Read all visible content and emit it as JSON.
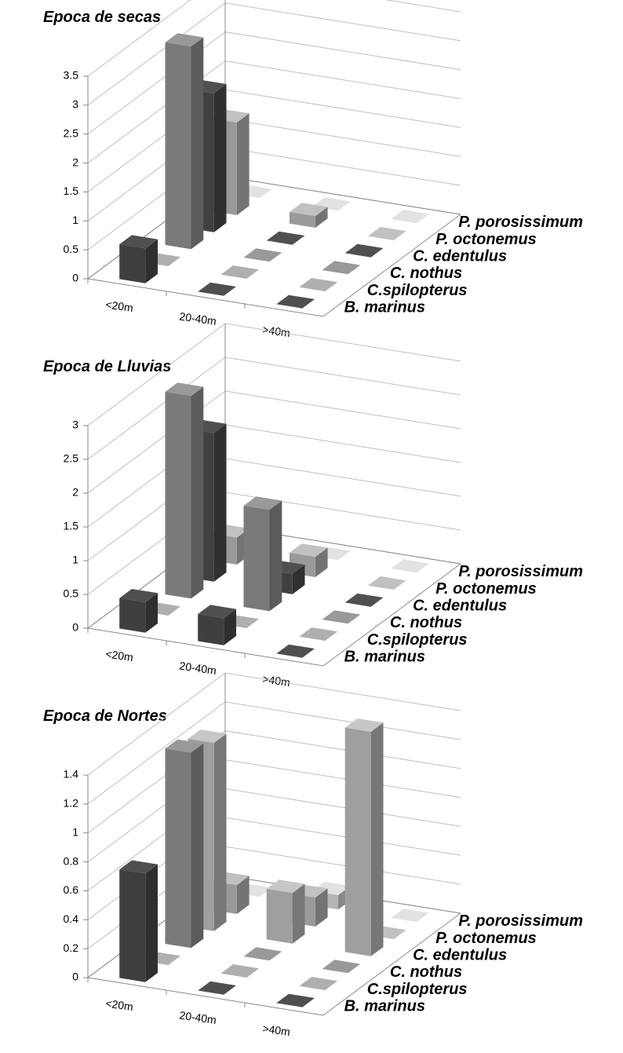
{
  "chart_data": [
    {
      "type": "bar3d",
      "title": "Epoca de secas",
      "categories": [
        "<20m",
        "20-40m",
        ">40m"
      ],
      "series": [
        {
          "name": "B. marinus",
          "color": "#3f3f3f",
          "values": [
            0.6,
            0,
            0
          ]
        },
        {
          "name": "C.spilopterus",
          "color": "#8c8c8c",
          "values": [
            0,
            0,
            0
          ]
        },
        {
          "name": "C. nothus",
          "color": "#7a7a7a",
          "values": [
            3.5,
            0,
            0
          ]
        },
        {
          "name": "C. edentulus",
          "color": "#404040",
          "values": [
            2.4,
            0,
            0
          ]
        },
        {
          "name": "P. octonemus",
          "color": "#9a9a9a",
          "values": [
            1.6,
            0.2,
            0
          ]
        },
        {
          "name": "P. porosissimum",
          "color": "#b5b5b5",
          "values": [
            0,
            0,
            0
          ]
        }
      ],
      "ylim": [
        0,
        3.5
      ],
      "yticks": [
        0,
        0.5,
        1,
        1.5,
        2,
        2.5,
        3,
        3.5
      ],
      "grid": true
    },
    {
      "type": "bar3d",
      "title": "Epoca de Lluvias",
      "categories": [
        "<20m",
        "20-40m",
        ">40m"
      ],
      "series": [
        {
          "name": "B. marinus",
          "color": "#3f3f3f",
          "values": [
            0.45,
            0.4,
            0
          ]
        },
        {
          "name": "C.spilopterus",
          "color": "#8c8c8c",
          "values": [
            0,
            0,
            0
          ]
        },
        {
          "name": "C. nothus",
          "color": "#7a7a7a",
          "values": [
            3,
            1.5,
            0
          ]
        },
        {
          "name": "C. edentulus",
          "color": "#404040",
          "values": [
            2.2,
            0.3,
            0
          ]
        },
        {
          "name": "P. octonemus",
          "color": "#9a9a9a",
          "values": [
            0.4,
            0.3,
            0
          ]
        },
        {
          "name": "P. porosissimum",
          "color": "#b5b5b5",
          "values": [
            0,
            0,
            0
          ]
        }
      ],
      "ylim": [
        0,
        3
      ],
      "yticks": [
        0,
        0.5,
        1,
        1.5,
        2,
        2.5,
        3
      ],
      "grid": true
    },
    {
      "type": "bar3d",
      "title": "Epoca de Nortes",
      "categories": [
        "<20m",
        "20-40m",
        ">40m"
      ],
      "series": [
        {
          "name": "B. marinus",
          "color": "#3f3f3f",
          "values": [
            0.75,
            0,
            0
          ]
        },
        {
          "name": "C.spilopterus",
          "color": "#8c8c8c",
          "values": [
            0,
            0,
            0
          ]
        },
        {
          "name": "C. nothus",
          "color": "#7a7a7a",
          "values": [
            1.35,
            0,
            0
          ]
        },
        {
          "name": "C. edentulus",
          "color": "#9f9f9f",
          "values": [
            1.3,
            0.35,
            1.55
          ]
        },
        {
          "name": "P. octonemus",
          "color": "#9a9a9a",
          "values": [
            0.2,
            0.2,
            0
          ]
        },
        {
          "name": "P. porosissimum",
          "color": "#b5b5b5",
          "values": [
            0,
            0.1,
            0
          ]
        }
      ],
      "ylim": [
        0,
        1.4
      ],
      "yticks": [
        0,
        0.2,
        0.4,
        0.6,
        0.8,
        1,
        1.2,
        1.4
      ],
      "grid": true
    }
  ]
}
